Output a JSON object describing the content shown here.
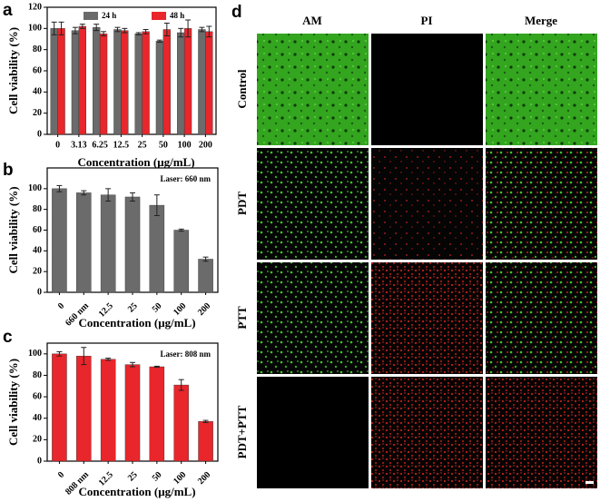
{
  "chart_data": [
    {
      "type": "bar",
      "label": "a",
      "ylabel": "Cell viability (%)",
      "xlabel": "Concentration (μg/mL)",
      "categories": [
        "0",
        "3.13",
        "6.25",
        "12.5",
        "25",
        "50",
        "100",
        "200"
      ],
      "series": [
        {
          "name": "24 h",
          "color": "#6b6b6b",
          "values": [
            100,
            98,
            101,
            99,
            95,
            88,
            96,
            99
          ],
          "errors": [
            6,
            3,
            3,
            2,
            1,
            1,
            4,
            2
          ]
        },
        {
          "name": "48 h",
          "color": "#e8262b",
          "values": [
            100,
            102,
            95,
            98,
            97,
            99,
            100,
            97
          ],
          "errors": [
            6,
            2,
            2,
            2,
            2,
            6,
            8,
            5
          ]
        }
      ],
      "ylim": [
        0,
        120
      ],
      "yticks": [
        0,
        20,
        40,
        60,
        80,
        100,
        120
      ]
    },
    {
      "type": "bar",
      "label": "b",
      "ylabel": "Cell viability (%)",
      "xlabel": "Concentration (μg/mL)",
      "annotation": "Laser: 660 nm",
      "categories": [
        "0",
        "660 nm",
        "12.5",
        "25",
        "50",
        "100",
        "200"
      ],
      "series": [
        {
          "color": "#6b6b6b",
          "values": [
            100,
            96,
            94,
            92,
            84,
            60,
            32
          ],
          "errors": [
            3,
            2,
            6,
            4,
            10,
            1,
            2
          ]
        }
      ],
      "ylim": [
        0,
        120
      ],
      "yticks": [
        0,
        20,
        40,
        60,
        80,
        100
      ]
    },
    {
      "type": "bar",
      "label": "c",
      "ylabel": "Cell viability (%)",
      "xlabel": "Concentration (μg/mL)",
      "annotation": "Laser: 808 nm",
      "categories": [
        "0",
        "808 nm",
        "12.5",
        "25",
        "50",
        "100",
        "200"
      ],
      "series": [
        {
          "color": "#e8262b",
          "values": [
            100,
            98,
            95,
            90,
            88,
            71,
            37
          ],
          "errors": [
            2,
            8,
            1,
            2,
            0.5,
            5,
            1
          ]
        }
      ],
      "ylim": [
        0,
        110
      ],
      "yticks": [
        0,
        20,
        40,
        60,
        80,
        100
      ]
    }
  ],
  "panel_d": {
    "label": "d",
    "columns": [
      "AM",
      "PI",
      "Merge"
    ],
    "rows": [
      "Control",
      "PDT",
      "PTT",
      "PDT+PTT"
    ]
  }
}
